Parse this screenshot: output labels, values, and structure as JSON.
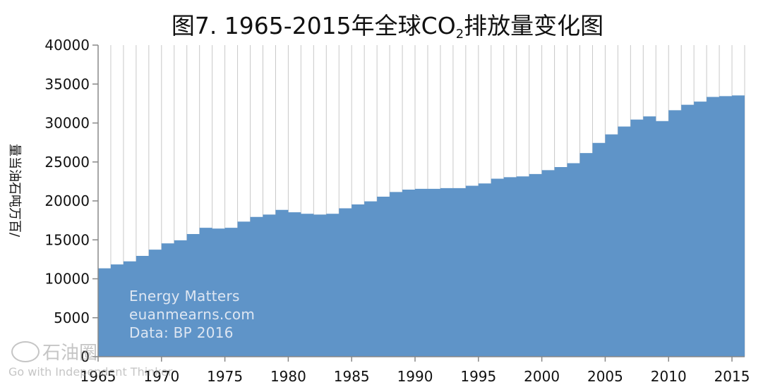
{
  "chart_data": {
    "type": "area",
    "title_main": "图7. 1965-2015年全球CO",
    "title_sub": "2",
    "title_tail": "排放量变化图",
    "ylabel": "量当油石吨万百/",
    "ylim": [
      0,
      40000
    ],
    "yticks": [
      0,
      5000,
      10000,
      15000,
      20000,
      25000,
      30000,
      35000,
      40000
    ],
    "xticks": [
      "1965",
      "1970",
      "1975",
      "1980",
      "1985",
      "1990",
      "1995",
      "2000",
      "2005",
      "2010",
      "2015"
    ],
    "x": [
      1965,
      1966,
      1967,
      1968,
      1969,
      1970,
      1971,
      1972,
      1973,
      1974,
      1975,
      1976,
      1977,
      1978,
      1979,
      1980,
      1981,
      1982,
      1983,
      1984,
      1985,
      1986,
      1987,
      1988,
      1989,
      1990,
      1991,
      1992,
      1993,
      1994,
      1995,
      1996,
      1997,
      1998,
      1999,
      2000,
      2001,
      2002,
      2003,
      2004,
      2005,
      2006,
      2007,
      2008,
      2009,
      2010,
      2011,
      2012,
      2013,
      2014,
      2015
    ],
    "values": [
      11300,
      11800,
      12200,
      12900,
      13700,
      14500,
      14900,
      15700,
      16500,
      16400,
      16500,
      17300,
      17900,
      18200,
      18800,
      18500,
      18300,
      18200,
      18300,
      19000,
      19500,
      19900,
      20500,
      21100,
      21400,
      21500,
      21500,
      21600,
      21600,
      21900,
      22200,
      22800,
      23000,
      23100,
      23400,
      23900,
      24300,
      24800,
      26100,
      27400,
      28500,
      29500,
      30400,
      30800,
      30200,
      31600,
      32300,
      32700,
      33300,
      33400,
      33500
    ],
    "color": "#5f94c8",
    "grid": true
  },
  "watermark": {
    "line1": "Energy Matters",
    "line2": "euanmearns.com",
    "line3": "Data: BP 2016",
    "logo_text": "石油圈",
    "tagline": "Go with Independent Thinker"
  }
}
